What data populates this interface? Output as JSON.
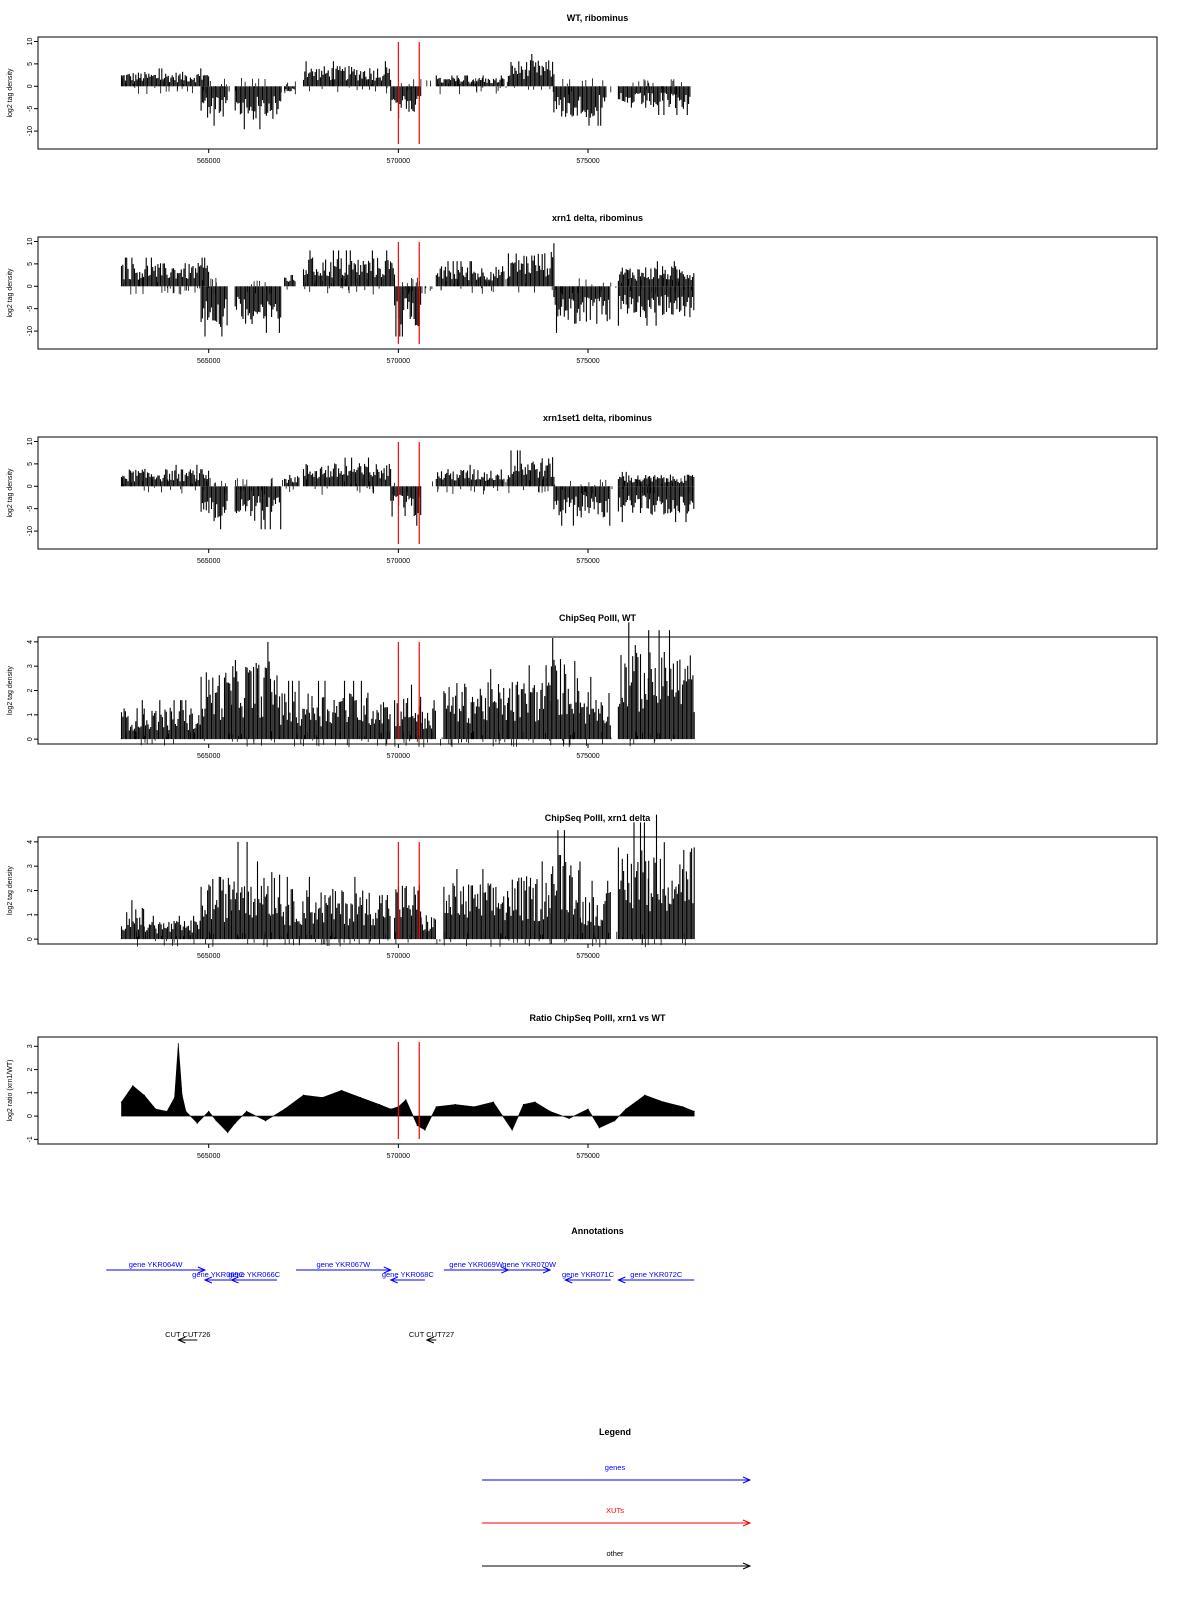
{
  "colors": {
    "frame": "#000000",
    "signal": "#000000",
    "marker": "#ff0000",
    "gene": "#0000ff",
    "xut": "#ff0000",
    "other": "#000000"
  },
  "x_axis": {
    "range": [
      560500,
      590000
    ],
    "ticks": [
      565000,
      570000,
      575000
    ],
    "tick_labels": [
      "565000",
      "570000",
      "575000"
    ]
  },
  "markers": [
    570000,
    570550
  ],
  "chart_data": [
    {
      "type": "bar",
      "title": "WT, ribominus",
      "ylabel": "log2 tag density",
      "ylim": [
        -14,
        11
      ],
      "yticks": [
        10,
        5,
        0,
        -5,
        -10
      ],
      "ytick_labels": [
        "10",
        "5",
        "0",
        "-5",
        "-10"
      ],
      "segments": [
        {
          "from": 562700,
          "to": 565000,
          "strand": "+",
          "level": 2.5
        },
        {
          "from": 564800,
          "to": 565500,
          "strand": "-",
          "level": -5.5
        },
        {
          "from": 565700,
          "to": 566900,
          "strand": "-",
          "level": -6
        },
        {
          "from": 567000,
          "to": 567300,
          "strand": "-",
          "level": -1
        },
        {
          "from": 567500,
          "to": 569800,
          "strand": "+",
          "level": 3.5
        },
        {
          "from": 569800,
          "to": 570600,
          "strand": "-",
          "level": -4.5
        },
        {
          "from": 571000,
          "to": 572800,
          "strand": "+",
          "level": 1.5
        },
        {
          "from": 572900,
          "to": 574100,
          "strand": "+",
          "level": 4.5
        },
        {
          "from": 574100,
          "to": 575500,
          "strand": "-",
          "level": -5.5
        },
        {
          "from": 575800,
          "to": 577700,
          "strand": "-",
          "level": -4
        }
      ]
    },
    {
      "type": "bar",
      "title": "xrn1 delta, ribominus",
      "ylabel": "log2 tag density",
      "ylim": [
        -14,
        11
      ],
      "yticks": [
        10,
        5,
        0,
        -5,
        -10
      ],
      "ytick_labels": [
        "10",
        "5",
        "0",
        "-5",
        "-10"
      ],
      "segments": [
        {
          "from": 562700,
          "to": 565000,
          "strand": "+",
          "level": 4
        },
        {
          "from": 564800,
          "to": 565500,
          "strand": "-",
          "level": -7
        },
        {
          "from": 565700,
          "to": 566900,
          "strand": "-",
          "level": -6.5
        },
        {
          "from": 567000,
          "to": 567300,
          "strand": "+",
          "level": 2
        },
        {
          "from": 567500,
          "to": 569900,
          "strand": "+",
          "level": 5
        },
        {
          "from": 569900,
          "to": 570600,
          "strand": "-",
          "level": -7
        },
        {
          "from": 571000,
          "to": 572800,
          "strand": "+",
          "level": 3.5
        },
        {
          "from": 572900,
          "to": 574100,
          "strand": "+",
          "level": 6
        },
        {
          "from": 574100,
          "to": 575600,
          "strand": "-",
          "level": -6.5
        },
        {
          "from": 575800,
          "to": 577800,
          "strand": "+",
          "level": 3.5
        },
        {
          "from": 575800,
          "to": 577800,
          "strand": "-",
          "level": -5.5
        }
      ]
    },
    {
      "type": "bar",
      "title": "xrn1set1 delta, ribominus",
      "ylabel": "log2 tag density",
      "ylim": [
        -14,
        11
      ],
      "yticks": [
        10,
        5,
        0,
        -5,
        -10
      ],
      "ytick_labels": [
        "10",
        "5",
        "0",
        "-5",
        "-10"
      ],
      "segments": [
        {
          "from": 562700,
          "to": 565000,
          "strand": "+",
          "level": 3
        },
        {
          "from": 564800,
          "to": 565500,
          "strand": "-",
          "level": -6
        },
        {
          "from": 565700,
          "to": 566900,
          "strand": "-",
          "level": -6
        },
        {
          "from": 567000,
          "to": 567400,
          "strand": "+",
          "level": 2
        },
        {
          "from": 567500,
          "to": 569800,
          "strand": "+",
          "level": 4
        },
        {
          "from": 569800,
          "to": 570600,
          "strand": "-",
          "level": -5.5
        },
        {
          "from": 571000,
          "to": 572800,
          "strand": "+",
          "level": 3
        },
        {
          "from": 572900,
          "to": 574100,
          "strand": "+",
          "level": 5
        },
        {
          "from": 574100,
          "to": 575600,
          "strand": "-",
          "level": -5.5
        },
        {
          "from": 575800,
          "to": 577800,
          "strand": "+",
          "level": 2
        },
        {
          "from": 575800,
          "to": 577800,
          "strand": "-",
          "level": -5
        }
      ]
    },
    {
      "type": "bar",
      "title": "ChipSeq PolII, WT",
      "ylabel": "log2 tag density",
      "ylim": [
        -0.2,
        4.2
      ],
      "yticks": [
        0,
        1,
        2,
        3,
        4
      ],
      "ytick_labels": [
        "0",
        "1",
        "2",
        "3",
        "4"
      ],
      "segments": [
        {
          "from": 562700,
          "to": 563300,
          "strand": "+",
          "level": 1.0
        },
        {
          "from": 563300,
          "to": 564800,
          "strand": "+",
          "level": 1.0
        },
        {
          "from": 564800,
          "to": 565600,
          "strand": "+",
          "level": 2.2
        },
        {
          "from": 565600,
          "to": 566900,
          "strand": "+",
          "level": 2.5
        },
        {
          "from": 566900,
          "to": 569800,
          "strand": "+",
          "level": 1.5
        },
        {
          "from": 569900,
          "to": 570600,
          "strand": "+",
          "level": 1.4
        },
        {
          "from": 570600,
          "to": 571000,
          "strand": "+",
          "level": 1.0
        },
        {
          "from": 571200,
          "to": 572900,
          "strand": "+",
          "level": 1.8
        },
        {
          "from": 572900,
          "to": 574000,
          "strand": "+",
          "level": 1.9
        },
        {
          "from": 574000,
          "to": 574800,
          "strand": "+",
          "level": 2.6
        },
        {
          "from": 574800,
          "to": 575600,
          "strand": "+",
          "level": 1.6
        },
        {
          "from": 575800,
          "to": 576600,
          "strand": "+",
          "level": 3.0
        },
        {
          "from": 576600,
          "to": 577800,
          "strand": "+",
          "level": 2.8
        }
      ]
    },
    {
      "type": "bar",
      "title": "ChipSeq PolII, xrn1 delta",
      "ylabel": "log2 tag density",
      "ylim": [
        -0.2,
        4.2
      ],
      "yticks": [
        0,
        1,
        2,
        3,
        4
      ],
      "ytick_labels": [
        "0",
        "1",
        "2",
        "3",
        "4"
      ],
      "segments": [
        {
          "from": 562700,
          "to": 563300,
          "strand": "+",
          "level": 1.0
        },
        {
          "from": 563300,
          "to": 564800,
          "strand": "+",
          "level": 0.6
        },
        {
          "from": 564800,
          "to": 565600,
          "strand": "+",
          "level": 2.0
        },
        {
          "from": 565600,
          "to": 566900,
          "strand": "+",
          "level": 2.5
        },
        {
          "from": 566900,
          "to": 569800,
          "strand": "+",
          "level": 1.6
        },
        {
          "from": 569900,
          "to": 570600,
          "strand": "+",
          "level": 1.8
        },
        {
          "from": 570600,
          "to": 571000,
          "strand": "+",
          "level": 0.8
        },
        {
          "from": 571200,
          "to": 572900,
          "strand": "+",
          "level": 1.8
        },
        {
          "from": 572900,
          "to": 574000,
          "strand": "+",
          "level": 2.0
        },
        {
          "from": 574000,
          "to": 574800,
          "strand": "+",
          "level": 2.8
        },
        {
          "from": 574800,
          "to": 575600,
          "strand": "+",
          "level": 1.5
        },
        {
          "from": 575800,
          "to": 576600,
          "strand": "+",
          "level": 3.0
        },
        {
          "from": 576600,
          "to": 577800,
          "strand": "+",
          "level": 3.2
        }
      ]
    },
    {
      "type": "area",
      "title": "Ratio ChipSeq PolII, xrn1 vs WT",
      "ylabel": "log2 ratio (xrn1/WT)",
      "ylim": [
        -1.2,
        3.4
      ],
      "yticks": [
        -1,
        0,
        1,
        2,
        3
      ],
      "ytick_labels": [
        "-1",
        "0",
        "1",
        "2",
        "3"
      ],
      "x": [
        562700,
        563000,
        563300,
        563600,
        563900,
        564100,
        564200,
        564300,
        564400,
        564700,
        565000,
        565200,
        565500,
        565700,
        566000,
        566500,
        567000,
        567500,
        568000,
        568500,
        569000,
        569500,
        569800,
        570000,
        570200,
        570500,
        570700,
        571000,
        571500,
        572000,
        572500,
        573000,
        573300,
        573600,
        574000,
        574500,
        575000,
        575300,
        575700,
        576000,
        576500,
        577000,
        577500,
        577800
      ],
      "y": [
        0.6,
        1.3,
        0.9,
        0.3,
        0.2,
        0.8,
        3.1,
        0.9,
        0.2,
        -0.3,
        0.2,
        -0.2,
        -0.7,
        -0.3,
        0.2,
        -0.2,
        0.3,
        0.9,
        0.8,
        1.1,
        0.8,
        0.5,
        0.3,
        0.4,
        0.7,
        -0.4,
        -0.6,
        0.4,
        0.5,
        0.4,
        0.6,
        -0.6,
        0.5,
        0.6,
        0.2,
        -0.1,
        0.3,
        -0.5,
        -0.2,
        0.3,
        0.9,
        0.6,
        0.4,
        0.2
      ]
    }
  ],
  "annotations": {
    "title": "Annotations",
    "genes": [
      {
        "label": "gene YKR064W",
        "from": 562300,
        "to": 564900,
        "strand": "+",
        "row": 0
      },
      {
        "label": "gene YKR065C",
        "from": 564900,
        "to": 565600,
        "strand": "-",
        "row": 1
      },
      {
        "label": "gene YKR066C",
        "from": 565600,
        "to": 566800,
        "strand": "-",
        "row": 1
      },
      {
        "label": "gene YKR067W",
        "from": 567300,
        "to": 569800,
        "strand": "+",
        "row": 0
      },
      {
        "label": "gene YKR068C",
        "from": 569800,
        "to": 570700,
        "strand": "-",
        "row": 1
      },
      {
        "label": "gene YKR069W",
        "from": 571200,
        "to": 572900,
        "strand": "+",
        "row": 0
      },
      {
        "label": "gene YKR070W",
        "from": 572900,
        "to": 574000,
        "strand": "+",
        "row": 0
      },
      {
        "label": "gene YKR071C",
        "from": 574400,
        "to": 575600,
        "strand": "-",
        "row": 1
      },
      {
        "label": "gene YKR072C",
        "from": 575800,
        "to": 577800,
        "strand": "-",
        "row": 1
      }
    ],
    "cuts": [
      {
        "label": "CUT CUT726",
        "from": 564200,
        "to": 564700,
        "strand": "-"
      },
      {
        "label": "CUT CUT727",
        "from": 570750,
        "to": 571000,
        "strand": "-"
      }
    ]
  },
  "legend": {
    "title": "Legend",
    "items": [
      {
        "label": "genes",
        "color": "#0000ff"
      },
      {
        "label": "XUTs",
        "color": "#ff0000"
      },
      {
        "label": "other",
        "color": "#000000"
      }
    ]
  }
}
